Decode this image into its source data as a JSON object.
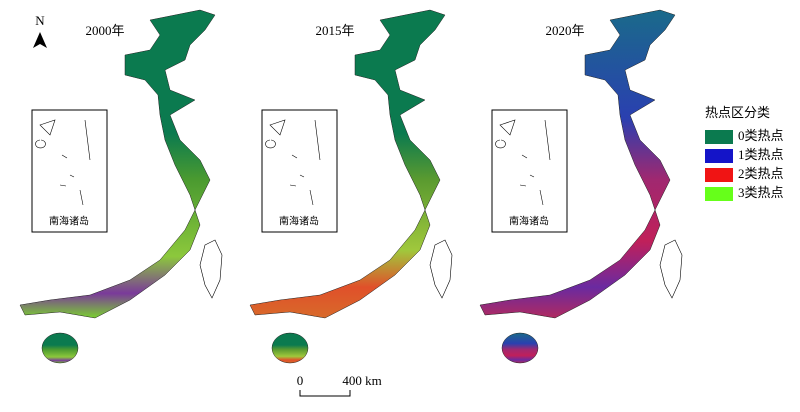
{
  "north": "N",
  "panels": [
    {
      "title": "2000年",
      "inset_label": "南海诸岛"
    },
    {
      "title": "2015年",
      "inset_label": "南海诸岛"
    },
    {
      "title": "2020年",
      "inset_label": "南海诸岛"
    }
  ],
  "legend": {
    "title": "热点区分类",
    "items": [
      {
        "label": "0类热点",
        "color": "#0b7a4f"
      },
      {
        "label": "1类热点",
        "color": "#1414c8"
      },
      {
        "label": "2类热点",
        "color": "#f01414"
      },
      {
        "label": "3类热点",
        "color": "#66ff1a"
      }
    ]
  },
  "scale_bar": {
    "start": "0",
    "end": "400 km"
  }
}
